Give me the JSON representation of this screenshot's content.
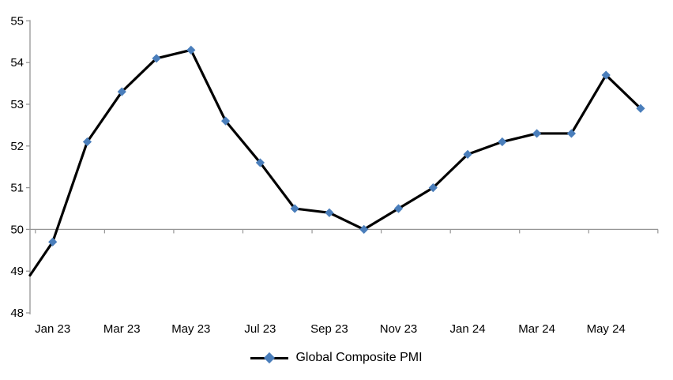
{
  "chart_data": {
    "type": "line",
    "title": "",
    "xlabel": "",
    "ylabel": "",
    "categories": [
      "Jan 23",
      "Feb 23",
      "Mar 23",
      "Apr 23",
      "May 23",
      "Jun 23",
      "Jul 23",
      "Aug 23",
      "Sep 23",
      "Oct 23",
      "Nov 23",
      "Dec 23",
      "Jan 24",
      "Feb 24",
      "Mar 24",
      "Apr 24",
      "May 24",
      "Jun 24"
    ],
    "series": [
      {
        "name": "Global Composite PMI",
        "values": [
          49.7,
          52.1,
          53.3,
          54.1,
          54.3,
          52.6,
          51.6,
          50.5,
          50.4,
          50.0,
          50.5,
          51.0,
          51.8,
          52.1,
          52.3,
          52.3,
          53.7,
          52.9
        ]
      }
    ],
    "line_enters_left_edge_at_value": 48.9,
    "ylim": [
      48,
      55
    ],
    "y_ticks": [
      48,
      49,
      50,
      51,
      52,
      53,
      54,
      55
    ],
    "x_tick_labels": [
      "Jan 23",
      "Mar 23",
      "May 23",
      "Jul 23",
      "Sep 23",
      "Nov 23",
      "Jan 24",
      "Mar 24",
      "May 24"
    ],
    "x_tick_label_category_indices": [
      0,
      2,
      4,
      6,
      8,
      10,
      12,
      14,
      16
    ],
    "x_axis_crosses_at_value": 50,
    "grid": "off",
    "legend_position": "bottom-center",
    "marker_shape": "diamond",
    "colors": {
      "line": "#000000",
      "marker": "#4a7ebb",
      "axis": "#969696",
      "text": "#000000",
      "background": "#ffffff"
    }
  },
  "legend": {
    "label": "Global Composite PMI"
  }
}
